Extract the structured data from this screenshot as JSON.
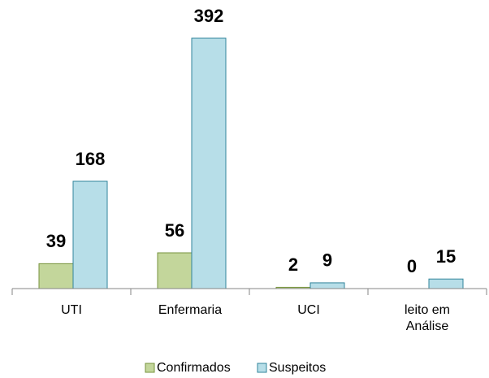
{
  "chart_data": {
    "type": "bar",
    "categories": [
      "UTI",
      "Enfermaria",
      "UCI",
      "leito em Análise"
    ],
    "series": [
      {
        "name": "Confirmados",
        "color": "#c3d69b",
        "values": [
          39,
          56,
          2,
          0
        ]
      },
      {
        "name": "Suspeitos",
        "color": "#b7dee8",
        "values": [
          168,
          392,
          9,
          15
        ]
      }
    ],
    "legend": "bottom"
  }
}
